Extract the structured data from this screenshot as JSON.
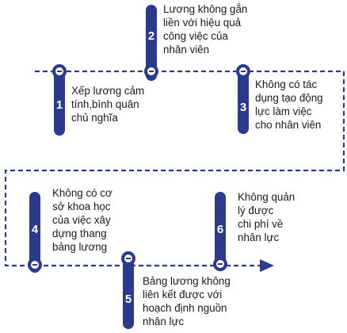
{
  "colors": {
    "accent": "#2b3a8c",
    "connector": "#2b3a8c",
    "text": "#1a1a1a"
  },
  "steps": [
    {
      "number": "1",
      "lines": [
        "Xếp lương cảm",
        "tính,bình quân",
        "chủ nghĩa"
      ]
    },
    {
      "number": "2",
      "lines": [
        "Lương không gắn",
        "liền với hiệu quả",
        "công việc của",
        "nhân viên"
      ]
    },
    {
      "number": "3",
      "lines": [
        "Không có tác",
        "dụng tạo động",
        "lực làm việc",
        "cho nhân viên"
      ]
    },
    {
      "number": "4",
      "lines": [
        "Không có cơ",
        "sở khoa học",
        "của việc xây",
        "dựng thang",
        "bảng lương"
      ]
    },
    {
      "number": "5",
      "lines": [
        "Bảng lương không",
        "liên kết được với",
        "hoạch định nguồn",
        "nhân lực"
      ]
    },
    {
      "number": "6",
      "lines": [
        "Không  quản",
        "lý được",
        "chi phí về",
        "nhân lực"
      ]
    }
  ]
}
